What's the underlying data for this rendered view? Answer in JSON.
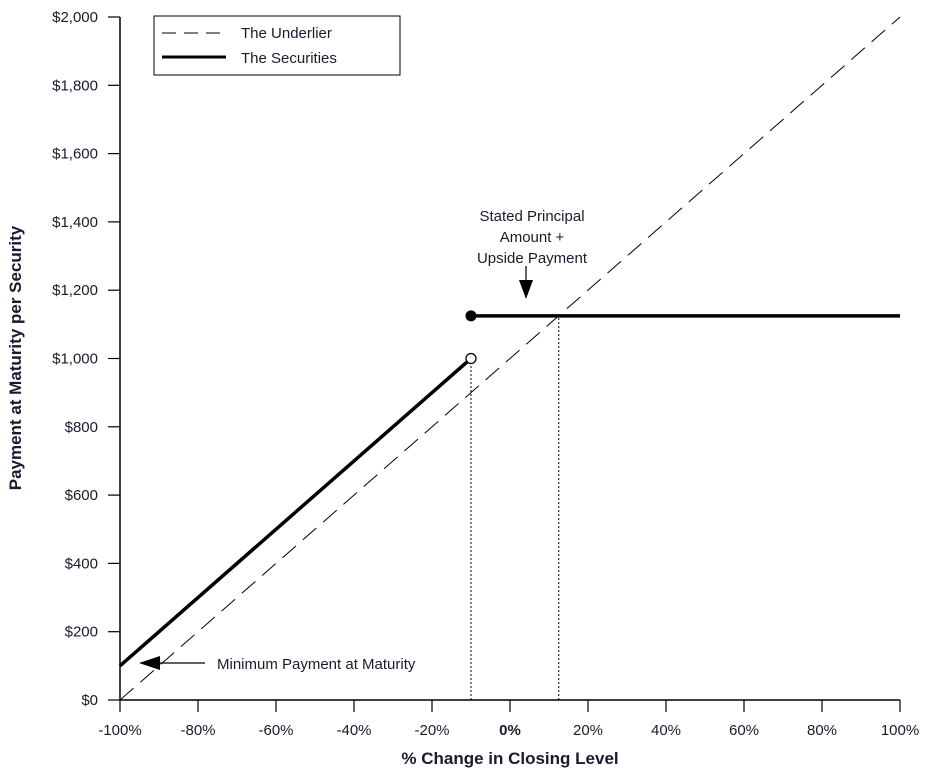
{
  "chart_data": {
    "type": "line",
    "title": "",
    "xlabel": "% Change in Closing Level",
    "ylabel": "Payment at Maturity per Security",
    "xlim": [
      -100,
      100
    ],
    "ylim": [
      0,
      2000
    ],
    "x_ticks": [
      -100,
      -80,
      -60,
      -40,
      -20,
      0,
      20,
      40,
      60,
      80,
      100
    ],
    "x_tick_labels": [
      "-100%",
      "-80%",
      "-60%",
      "-40%",
      "-20%",
      "0%",
      "20%",
      "40%",
      "60%",
      "80%",
      "100%"
    ],
    "y_ticks": [
      0,
      200,
      400,
      600,
      800,
      1000,
      1200,
      1400,
      1600,
      1800,
      2000
    ],
    "y_tick_labels": [
      "$0",
      "$200",
      "$400",
      "$600",
      "$800",
      "$1,000",
      "$1,200",
      "$1,400",
      "$1,600",
      "$1,800",
      "$2,000"
    ],
    "grid": false,
    "legend_placement": "top-left",
    "series": [
      {
        "name": "The Underlier",
        "style": "dashed",
        "x": [
          -100,
          100
        ],
        "y": [
          0,
          2000
        ]
      },
      {
        "name": "The Securities",
        "style": "solid-thick",
        "segments": [
          {
            "x": [
              -100,
              -10
            ],
            "y": [
              100,
              1000
            ],
            "end_marker": "open"
          },
          {
            "x": [
              -10,
              100
            ],
            "y": [
              1125,
              1125
            ],
            "start_marker": "filled"
          }
        ]
      }
    ],
    "reference_lines": [
      {
        "x": -10,
        "y_to": 1000,
        "style": "dotted"
      },
      {
        "x": 12.5,
        "y_to": 1125,
        "style": "dotted"
      }
    ],
    "annotations": [
      {
        "lines": [
          "Stated Principal",
          "Amount +",
          "Upside Payment"
        ],
        "arrow_to": [
          3.5,
          1150
        ]
      },
      {
        "text": "Minimum Payment at Maturity",
        "arrow_to": [
          -95,
          110
        ]
      }
    ]
  }
}
